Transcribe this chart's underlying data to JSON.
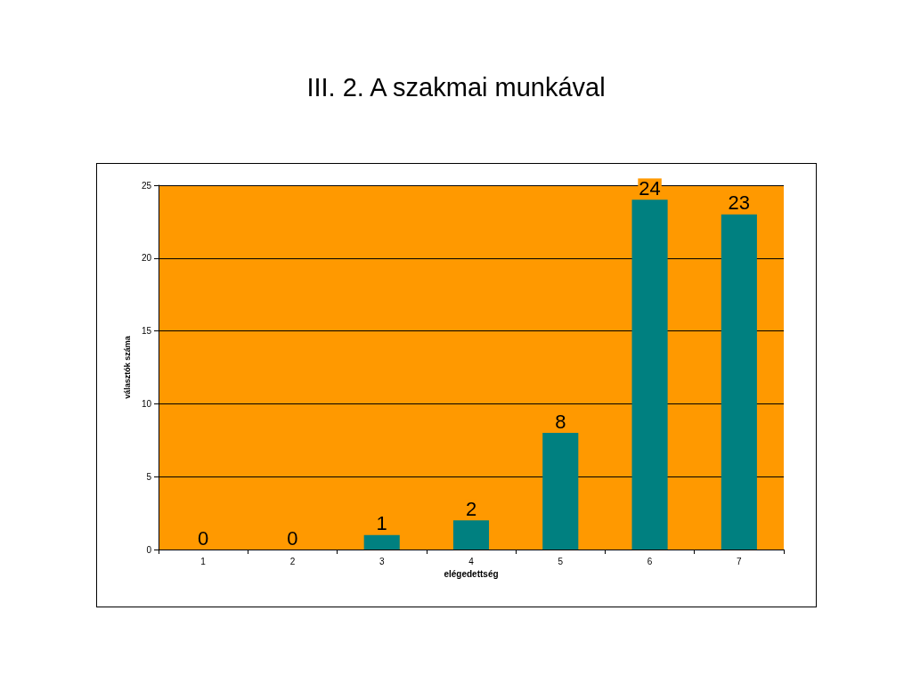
{
  "chart_data": {
    "type": "bar",
    "title": "III. 2. A szakmai munkával",
    "xlabel": "elégedettség",
    "ylabel": "választók száma",
    "categories": [
      "1",
      "2",
      "3",
      "4",
      "5",
      "6",
      "7"
    ],
    "values": [
      0,
      0,
      1,
      2,
      8,
      24,
      23
    ],
    "color": "#008080",
    "ylim": [
      0,
      25
    ],
    "yticks": [
      0,
      5,
      10,
      15,
      20,
      25
    ],
    "grid": "y",
    "data_labels": true
  }
}
